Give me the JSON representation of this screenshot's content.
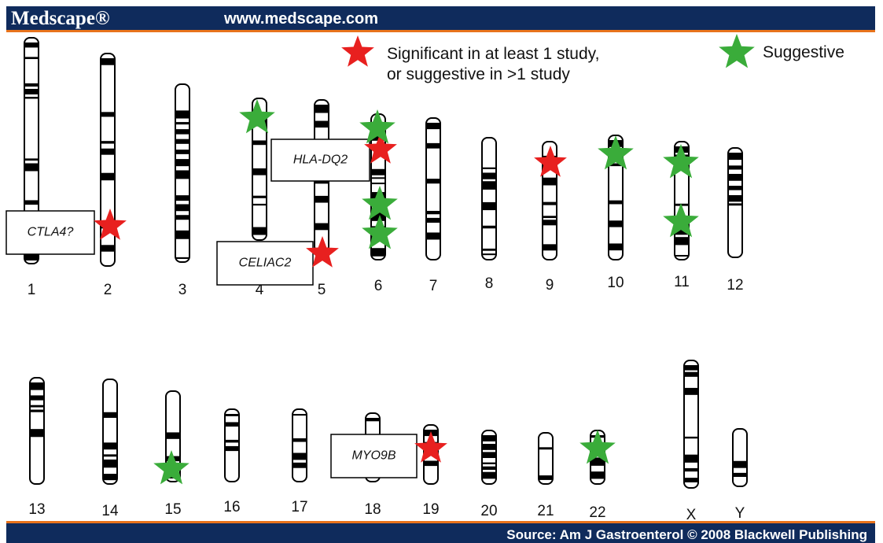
{
  "header": {
    "logo": "Medscape®",
    "url": "www.medscape.com"
  },
  "legend": [
    {
      "lines": [
        "Significant in at least 1 study,",
        "or suggestive in >1 study"
      ]
    },
    {
      "lines": [
        "Suggestive"
      ]
    }
  ],
  "chromosomes": [
    "1",
    "2",
    "3",
    "4",
    "5",
    "6",
    "7",
    "8",
    "9",
    "10",
    "11",
    "12",
    "13",
    "14",
    "15",
    "16",
    "17",
    "18",
    "19",
    "20",
    "21",
    "22",
    "X",
    "Y"
  ],
  "genes": [
    "CTLA4?",
    "CELIAC2",
    "HLA-DQ2",
    "MYO9B"
  ],
  "footer": {
    "source": "Source: Am J Gastroenterol © 2008 Blackwell Publishing"
  }
}
